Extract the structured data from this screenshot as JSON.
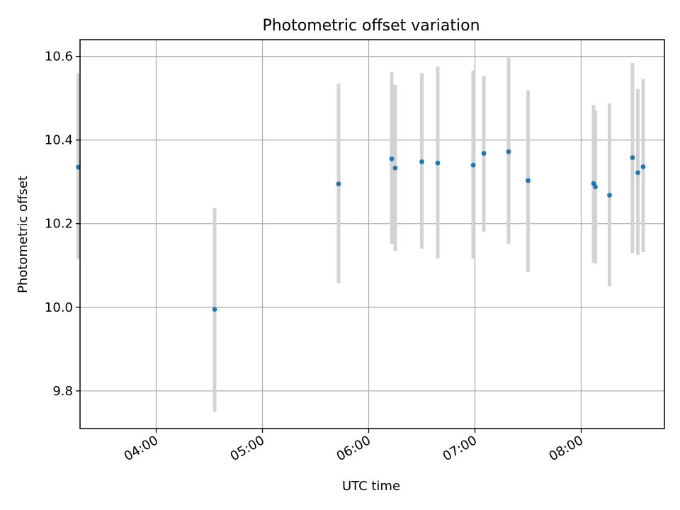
{
  "chart_data": {
    "type": "scatter",
    "title": "Photometric offset variation",
    "xlabel": "UTC time",
    "ylabel": "Photometric offset",
    "x_axis": {
      "scale": "time",
      "range": [
        "03:17",
        "08:47"
      ],
      "ticks": [
        "04:00",
        "05:00",
        "06:00",
        "07:00",
        "08:00"
      ],
      "tick_rotation": "rotated-30deg"
    },
    "y_axis": {
      "range": [
        9.71,
        10.64
      ],
      "ticks": [
        "9.8",
        "10.0",
        "10.2",
        "10.4",
        "10.6"
      ]
    },
    "grid": true,
    "legend": "none",
    "colors": {
      "points": "#1f77b4",
      "errorbars": "#d3d3d3",
      "grid": "#b0b0b0",
      "axes": "#000000"
    },
    "series": [
      {
        "points": [
          {
            "x": "03:16",
            "y": 10.335,
            "ymin": 10.115,
            "ymax": 10.56
          },
          {
            "x": "04:33",
            "y": 9.995,
            "ymin": 9.75,
            "ymax": 10.237
          },
          {
            "x": "05:43",
            "y": 10.295,
            "ymin": 10.057,
            "ymax": 10.535
          },
          {
            "x": "06:13",
            "y": 10.355,
            "ymin": 10.152,
            "ymax": 10.562
          },
          {
            "x": "06:15",
            "y": 10.333,
            "ymin": 10.135,
            "ymax": 10.532
          },
          {
            "x": "06:30",
            "y": 10.348,
            "ymin": 10.14,
            "ymax": 10.56
          },
          {
            "x": "06:39",
            "y": 10.345,
            "ymin": 10.117,
            "ymax": 10.576
          },
          {
            "x": "06:59",
            "y": 10.34,
            "ymin": 10.117,
            "ymax": 10.566
          },
          {
            "x": "07:05",
            "y": 10.368,
            "ymin": 10.18,
            "ymax": 10.553
          },
          {
            "x": "07:19",
            "y": 10.372,
            "ymin": 10.152,
            "ymax": 10.597
          },
          {
            "x": "07:30",
            "y": 10.303,
            "ymin": 10.085,
            "ymax": 10.519
          },
          {
            "x": "08:07",
            "y": 10.296,
            "ymin": 10.107,
            "ymax": 10.484
          },
          {
            "x": "08:08",
            "y": 10.288,
            "ymin": 10.105,
            "ymax": 10.471
          },
          {
            "x": "08:16",
            "y": 10.268,
            "ymin": 10.05,
            "ymax": 10.488
          },
          {
            "x": "08:29",
            "y": 10.358,
            "ymin": 10.13,
            "ymax": 10.584
          },
          {
            "x": "08:32",
            "y": 10.322,
            "ymin": 10.125,
            "ymax": 10.522
          },
          {
            "x": "08:35",
            "y": 10.336,
            "ymin": 10.132,
            "ymax": 10.546
          }
        ]
      }
    ]
  }
}
